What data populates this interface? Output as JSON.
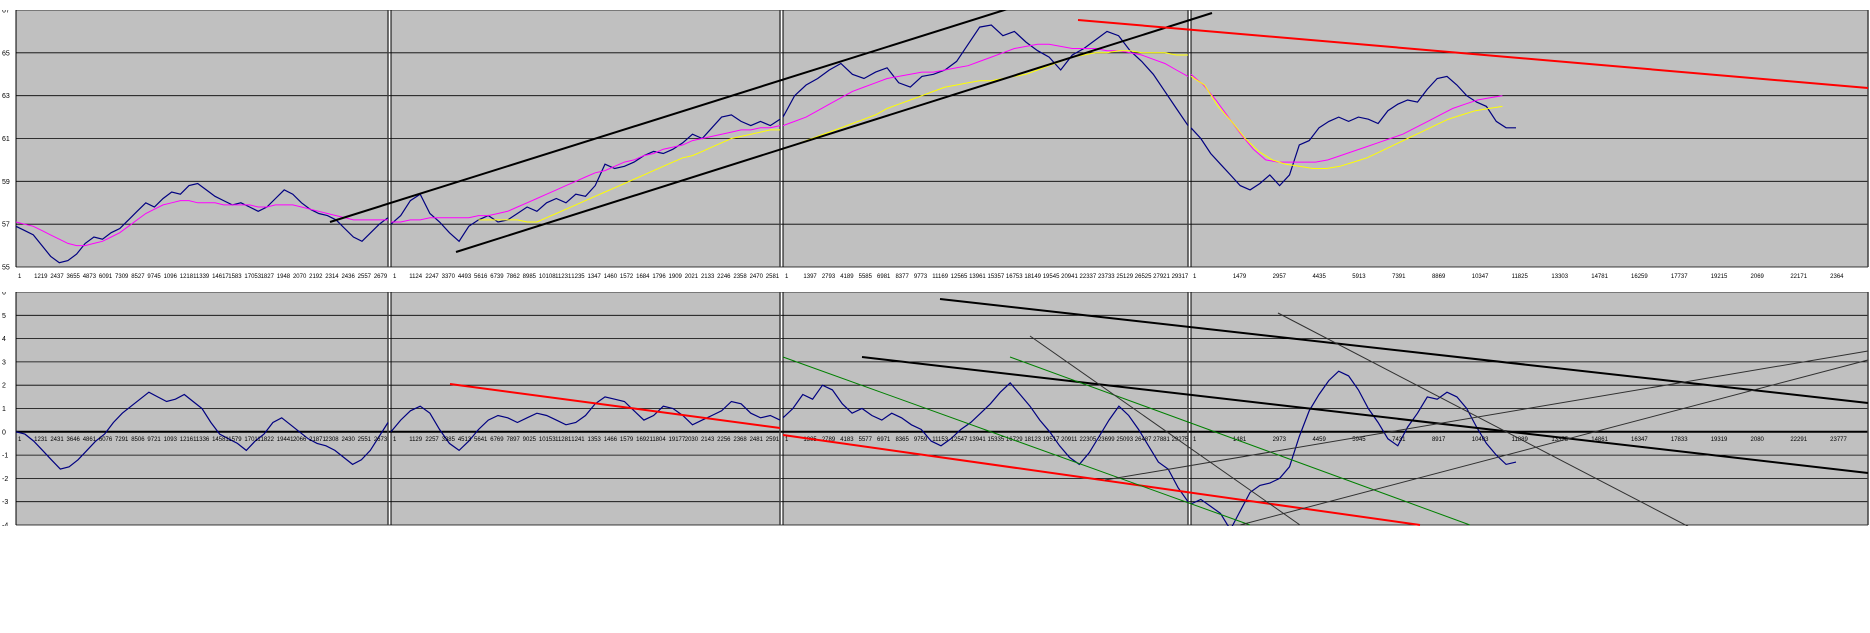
{
  "colors": {
    "panel_bg": "#c0c0c0",
    "price_line": "#000080",
    "magenta_line": "#ff00ff",
    "yellow_line": "#ffff00",
    "trend_black": "#000000",
    "trend_red": "#ff0000",
    "trend_green": "#008000",
    "grid": "#000000"
  },
  "chart_data": [
    {
      "type": "line",
      "panel": "price",
      "ylim": [
        55,
        67
      ],
      "yticks": [
        "67",
        "65",
        "63",
        "61",
        "59",
        "57",
        "55"
      ],
      "grid": true,
      "segments": [
        {
          "xticks": [
            "1",
            "1219",
            "2437",
            "3655",
            "4873",
            "6091",
            "7309",
            "8527",
            "9745",
            "1096",
            "12181",
            "1339",
            "14617",
            "1583",
            "17053",
            "1827",
            "1948",
            "2070",
            "2192",
            "2314",
            "2436",
            "2557",
            "2679"
          ],
          "series": [
            {
              "color": "navy",
              "values": [
                56.9,
                56.7,
                56.5,
                56.0,
                55.5,
                55.2,
                55.3,
                55.6,
                56.1,
                56.4,
                56.3,
                56.6,
                56.8,
                57.2,
                57.6,
                58.0,
                57.8,
                58.2,
                58.5,
                58.4,
                58.8,
                58.9,
                58.6,
                58.3,
                58.1,
                57.9,
                58.0,
                57.8,
                57.6,
                57.8,
                58.2,
                58.6,
                58.4,
                58.0,
                57.7,
                57.5,
                57.4,
                57.2,
                56.8,
                56.4,
                56.2,
                56.6,
                57.0,
                57.3
              ]
            },
            {
              "color": "magenta",
              "values": [
                57.1,
                57.0,
                56.9,
                56.7,
                56.5,
                56.3,
                56.1,
                56.0,
                56.0,
                56.1,
                56.2,
                56.4,
                56.6,
                56.9,
                57.2,
                57.5,
                57.7,
                57.9,
                58.0,
                58.1,
                58.1,
                58.0,
                58.0,
                58.0,
                57.9,
                57.9,
                57.9,
                57.9,
                57.8,
                57.8,
                57.9,
                57.9,
                57.9,
                57.8,
                57.7,
                57.6,
                57.5,
                57.4,
                57.3,
                57.2,
                57.2,
                57.2,
                57.2,
                57.2
              ]
            }
          ]
        },
        {
          "xticks": [
            "1",
            "1124",
            "2247",
            "3370",
            "4493",
            "5616",
            "6739",
            "7862",
            "8985",
            "10108",
            "11231",
            "1235",
            "1347",
            "1460",
            "1572",
            "1684",
            "1796",
            "1909",
            "2021",
            "2133",
            "2246",
            "2358",
            "2470",
            "2581"
          ],
          "series": [
            {
              "color": "navy",
              "values": [
                57.0,
                57.4,
                58.1,
                58.4,
                57.5,
                57.1,
                56.6,
                56.2,
                56.9,
                57.2,
                57.4,
                57.1,
                57.2,
                57.5,
                57.8,
                57.6,
                58.0,
                58.2,
                58.0,
                58.4,
                58.3,
                58.8,
                59.8,
                59.6,
                59.7,
                59.9,
                60.2,
                60.4,
                60.3,
                60.5,
                60.8,
                61.2,
                61.0,
                61.5,
                62.0,
                62.1,
                61.8,
                61.6,
                61.8,
                61.6,
                61.9
              ]
            },
            {
              "color": "magenta",
              "values": [
                57.1,
                57.1,
                57.2,
                57.2,
                57.3,
                57.3,
                57.3,
                57.3,
                57.3,
                57.4,
                57.4,
                57.5,
                57.6,
                57.8,
                58.0,
                58.2,
                58.4,
                58.6,
                58.8,
                59.0,
                59.2,
                59.4,
                59.5,
                59.7,
                59.9,
                60.0,
                60.2,
                60.3,
                60.5,
                60.6,
                60.7,
                60.9,
                61.0,
                61.1,
                61.2,
                61.3,
                61.4,
                61.4,
                61.5,
                61.5,
                61.6
              ]
            },
            {
              "color": "yellow",
              "values": [
                null,
                null,
                null,
                null,
                null,
                null,
                null,
                null,
                null,
                57.2,
                57.2,
                57.2,
                57.2,
                57.2,
                57.1,
                57.1,
                57.3,
                57.5,
                57.7,
                57.9,
                58.1,
                58.3,
                58.5,
                58.7,
                58.9,
                59.1,
                59.3,
                59.5,
                59.7,
                59.9,
                60.1,
                60.2,
                60.4,
                60.6,
                60.8,
                61.0,
                61.1,
                61.2,
                61.3,
                61.4,
                61.4
              ]
            }
          ]
        },
        {
          "xticks": [
            "1",
            "1397",
            "2793",
            "4189",
            "5585",
            "6981",
            "8377",
            "9773",
            "11169",
            "12565",
            "13961",
            "15357",
            "16753",
            "18149",
            "19545",
            "20941",
            "22337",
            "23733",
            "25129",
            "26525",
            "27921",
            "29317"
          ],
          "series": [
            {
              "color": "navy",
              "values": [
                62.0,
                63.0,
                63.5,
                63.8,
                64.2,
                64.5,
                64.0,
                63.8,
                64.1,
                64.3,
                63.6,
                63.4,
                63.9,
                64.0,
                64.2,
                64.6,
                65.4,
                66.2,
                66.3,
                65.8,
                66.0,
                65.5,
                65.1,
                64.8,
                64.2,
                64.9,
                65.2,
                65.6,
                66.0,
                65.8,
                65.1,
                64.6,
                64.0,
                63.2,
                62.4,
                61.6
              ]
            },
            {
              "color": "magenta",
              "values": [
                61.6,
                61.8,
                62.0,
                62.3,
                62.6,
                62.9,
                63.2,
                63.4,
                63.6,
                63.8,
                63.9,
                64.0,
                64.1,
                64.1,
                64.2,
                64.3,
                64.4,
                64.6,
                64.8,
                65.0,
                65.2,
                65.3,
                65.4,
                65.4,
                65.3,
                65.2,
                65.2,
                65.2,
                65.1,
                65.1,
                65.0,
                64.9,
                64.7,
                64.5,
                64.2,
                63.9
              ]
            },
            {
              "color": "yellow",
              "values": [
                60.5,
                60.7,
                60.9,
                61.1,
                61.3,
                61.5,
                61.7,
                61.9,
                62.1,
                62.4,
                62.6,
                62.8,
                63.0,
                63.2,
                63.4,
                63.5,
                63.6,
                63.7,
                63.7,
                63.8,
                63.9,
                64.0,
                64.2,
                64.4,
                64.6,
                64.8,
                64.9,
                65.0,
                65.0,
                65.1,
                65.1,
                65.0,
                65.0,
                65.0,
                64.9,
                64.9
              ]
            }
          ]
        },
        {
          "xticks": [
            "1",
            "1479",
            "2957",
            "4435",
            "5913",
            "7391",
            "8869",
            "10347",
            "11825",
            "13303",
            "14781",
            "16259",
            "17737",
            "19215",
            "2069",
            "22171",
            "2364"
          ],
          "series": [
            {
              "color": "navy",
              "values": [
                61.5,
                61.0,
                60.3,
                59.8,
                59.3,
                58.8,
                58.6,
                58.9,
                59.3,
                58.8,
                59.3,
                60.7,
                60.9,
                61.5,
                61.8,
                62.0,
                61.8,
                62.0,
                61.9,
                61.7,
                62.3,
                62.6,
                62.8,
                62.7,
                63.3,
                63.8,
                63.9,
                63.5,
                63.0,
                62.7,
                62.5,
                61.8,
                61.5,
                61.5
              ]
            },
            {
              "color": "magenta",
              "values": [
                64.0,
                63.5,
                62.8,
                62.0,
                61.2,
                60.5,
                60.0,
                59.9,
                59.9,
                59.9,
                59.9,
                60.0,
                60.2,
                60.4,
                60.6,
                60.8,
                61.0,
                61.2,
                61.5,
                61.8,
                62.1,
                62.4,
                62.6,
                62.8,
                62.9,
                63.0
              ]
            },
            {
              "color": "yellow",
              "values": [
                63.9,
                63.5,
                62.5,
                61.8,
                61.0,
                60.4,
                60.0,
                59.8,
                59.7,
                59.6,
                59.6,
                59.7,
                59.9,
                60.1,
                60.4,
                60.7,
                61.0,
                61.3,
                61.6,
                61.9,
                62.1,
                62.3,
                62.4,
                62.5
              ]
            }
          ]
        }
      ]
    },
    {
      "type": "line",
      "panel": "oscillator",
      "ylim": [
        -4,
        6
      ],
      "yticks": [
        "6",
        "5",
        "4",
        "3",
        "2",
        "1",
        "0",
        "-1",
        "-2",
        "-3",
        "-4"
      ],
      "grid": true,
      "segments": [
        {
          "xticks": [
            "1",
            "1231",
            "2431",
            "3646",
            "4861",
            "6076",
            "7291",
            "8506",
            "9721",
            "1093",
            "12161",
            "1336",
            "14581",
            "1579",
            "17011",
            "1822",
            "19441",
            "2066",
            "21871",
            "2308",
            "2430",
            "2551",
            "2673"
          ],
          "series": [
            {
              "color": "navy",
              "values": [
                0.0,
                -0.1,
                -0.4,
                -0.8,
                -1.2,
                -1.6,
                -1.5,
                -1.2,
                -0.8,
                -0.4,
                -0.1,
                0.4,
                0.8,
                1.1,
                1.4,
                1.7,
                1.5,
                1.3,
                1.4,
                1.6,
                1.3,
                1.0,
                0.4,
                -0.1,
                -0.3,
                -0.5,
                -0.8,
                -0.4,
                -0.1,
                0.4,
                0.6,
                0.3,
                0.0,
                -0.3,
                -0.5,
                -0.6,
                -0.8,
                -1.1,
                -1.4,
                -1.2,
                -0.8,
                -0.2,
                0.4
              ]
            }
          ]
        },
        {
          "xticks": [
            "1",
            "1129",
            "2257",
            "3385",
            "4513",
            "5641",
            "6769",
            "7897",
            "9025",
            "10153",
            "11281",
            "1241",
            "1353",
            "1466",
            "1579",
            "16921",
            "1804",
            "19177",
            "2030",
            "2143",
            "2256",
            "2368",
            "2481",
            "2591"
          ],
          "series": [
            {
              "color": "navy",
              "values": [
                0.0,
                0.5,
                0.9,
                1.1,
                0.8,
                0.1,
                -0.5,
                -0.8,
                -0.4,
                0.1,
                0.5,
                0.7,
                0.6,
                0.4,
                0.6,
                0.8,
                0.7,
                0.5,
                0.3,
                0.4,
                0.7,
                1.2,
                1.5,
                1.4,
                1.3,
                0.9,
                0.5,
                0.7,
                1.1,
                1.0,
                0.7,
                0.3,
                0.5,
                0.7,
                0.9,
                1.3,
                1.2,
                0.8,
                0.6,
                0.7,
                0.5
              ]
            }
          ]
        },
        {
          "xticks": [
            "1",
            "1395",
            "2789",
            "4183",
            "5577",
            "6971",
            "8365",
            "9759",
            "11153",
            "12547",
            "13941",
            "15335",
            "16729",
            "18123",
            "19517",
            "20911",
            "22305",
            "23699",
            "25093",
            "26487",
            "27881",
            "29275"
          ],
          "series": [
            {
              "color": "navy",
              "values": [
                0.6,
                1.0,
                1.6,
                1.4,
                2.0,
                1.8,
                1.2,
                0.8,
                1.0,
                0.7,
                0.5,
                0.8,
                0.6,
                0.3,
                0.1,
                -0.4,
                -0.6,
                -0.3,
                0.1,
                0.4,
                0.8,
                1.2,
                1.7,
                2.1,
                1.6,
                1.1,
                0.5,
                0.0,
                -0.6,
                -1.1,
                -1.4,
                -0.9,
                -0.2,
                0.5,
                1.1,
                0.7,
                0.1,
                -0.6,
                -1.3,
                -1.6,
                -2.4,
                -3.0
              ]
            }
          ]
        },
        {
          "xticks": [
            "1",
            "1481",
            "2973",
            "4459",
            "5945",
            "7431",
            "8917",
            "10403",
            "11889",
            "13375",
            "14861",
            "16347",
            "17833",
            "19319",
            "2080",
            "22291",
            "23777"
          ],
          "series": [
            {
              "color": "navy",
              "values": [
                -3.1,
                -2.9,
                -3.2,
                -3.5,
                -4.2,
                -3.4,
                -2.6,
                -2.3,
                -2.2,
                -2.0,
                -1.5,
                -0.2,
                0.9,
                1.6,
                2.2,
                2.6,
                2.4,
                1.8,
                1.0,
                0.4,
                -0.3,
                -0.6,
                0.2,
                0.8,
                1.5,
                1.4,
                1.7,
                1.5,
                1.0,
                0.2,
                -0.5,
                -1.0,
                -1.4,
                -1.3
              ]
            }
          ]
        }
      ]
    }
  ]
}
